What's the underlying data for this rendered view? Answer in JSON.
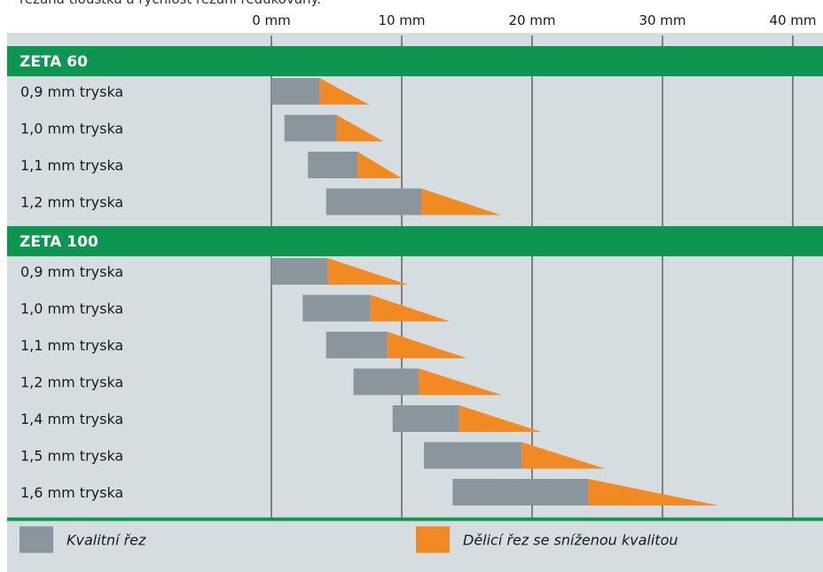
{
  "intro_text": "řezaná tloušťka a rychlost řezání redukovány.",
  "colors": {
    "background": "#d6dde1",
    "section_header": "#0d9650",
    "quality_cut": "#8a969e",
    "separation_cut": "#f28a23",
    "grid_line": "#222222",
    "text": "#1a1a1a"
  },
  "chart_data": {
    "type": "bar",
    "orientation": "horizontal",
    "x_ticks": [
      "0 mm",
      "10 mm",
      "20 mm",
      "30 mm",
      "40 mm"
    ],
    "xlim": [
      0,
      40
    ],
    "grid": true,
    "sections": [
      {
        "title": "ZETA 60",
        "rows": [
          {
            "label": "0,9 mm tryska",
            "quality_start": 0,
            "quality_end": 3.7,
            "separation_end": 7.5
          },
          {
            "label": "1,0 mm tryska",
            "quality_start": 1.0,
            "quality_end": 5.0,
            "separation_end": 8.6
          },
          {
            "label": "1,1 mm tryska",
            "quality_start": 2.8,
            "quality_end": 6.6,
            "separation_end": 10.0
          },
          {
            "label": "1,2 mm tryska",
            "quality_start": 4.2,
            "quality_end": 11.5,
            "separation_end": 17.6
          }
        ]
      },
      {
        "title": "ZETA 100",
        "rows": [
          {
            "label": "0,9 mm tryska",
            "quality_start": 0,
            "quality_end": 4.3,
            "separation_end": 10.5
          },
          {
            "label": "1,0 mm tryska",
            "quality_start": 2.4,
            "quality_end": 7.6,
            "separation_end": 13.7
          },
          {
            "label": "1,1 mm tryska",
            "quality_start": 4.2,
            "quality_end": 8.9,
            "separation_end": 15.0
          },
          {
            "label": "1,2 mm tryska",
            "quality_start": 6.3,
            "quality_end": 11.3,
            "separation_end": 17.7
          },
          {
            "label": "1,4 mm tryska",
            "quality_start": 9.3,
            "quality_end": 14.4,
            "separation_end": 20.7
          },
          {
            "label": "1,5 mm tryska",
            "quality_start": 11.7,
            "quality_end": 19.2,
            "separation_end": 25.6
          },
          {
            "label": "1,6 mm tryska",
            "quality_start": 13.9,
            "quality_end": 24.3,
            "separation_end": 34.3
          }
        ]
      }
    ],
    "legend": [
      {
        "name": "Kvalitní řez",
        "color": "#8a969e"
      },
      {
        "name": "Dělicí řez se sníženou kvalitou",
        "color": "#f28a23"
      }
    ],
    "legend_position": "bottom"
  }
}
